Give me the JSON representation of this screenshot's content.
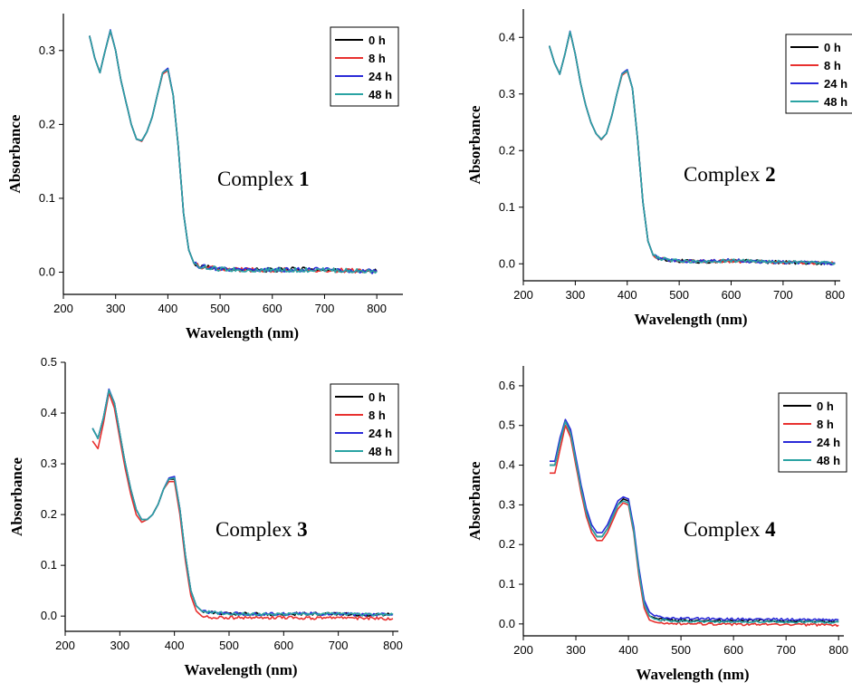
{
  "legend_labels": [
    "0 h",
    "8 h",
    "24 h",
    "48 h"
  ],
  "colors": {
    "0 h": "#000000",
    "8 h": "#e8312f",
    "24 h": "#2a2ad8",
    "48 h": "#2aa3a3"
  },
  "chart_data": [
    {
      "type": "line",
      "title": "",
      "annotation_prefix": "Complex ",
      "annotation_number": "1",
      "xlabel": "Wavelength (nm)",
      "ylabel": "Absorbance",
      "xlim": [
        200,
        850
      ],
      "ylim": [
        -0.03,
        0.35
      ],
      "xticks": [
        "200",
        "300",
        "400",
        "500",
        "600",
        "700",
        "800"
      ],
      "yticks": [
        "0.0",
        "0.1",
        "0.2",
        "0.3"
      ],
      "legend_position": "top-right",
      "x": [
        250,
        260,
        270,
        280,
        290,
        300,
        310,
        320,
        330,
        340,
        350,
        360,
        370,
        380,
        390,
        400,
        410,
        420,
        430,
        440,
        450,
        460,
        480,
        500,
        550,
        600,
        650,
        700,
        750,
        800
      ],
      "series": [
        {
          "name": "0 h",
          "values": [
            0.32,
            0.29,
            0.27,
            0.3,
            0.327,
            0.3,
            0.26,
            0.23,
            0.2,
            0.18,
            0.178,
            0.19,
            0.21,
            0.24,
            0.27,
            0.275,
            0.24,
            0.17,
            0.08,
            0.03,
            0.012,
            0.008,
            0.006,
            0.004,
            0.003,
            0.003,
            0.004,
            0.003,
            0.002,
            0.001
          ]
        },
        {
          "name": "8 h",
          "values": [
            0.32,
            0.29,
            0.27,
            0.3,
            0.326,
            0.3,
            0.26,
            0.23,
            0.2,
            0.18,
            0.177,
            0.19,
            0.21,
            0.24,
            0.268,
            0.273,
            0.24,
            0.17,
            0.08,
            0.03,
            0.012,
            0.008,
            0.006,
            0.004,
            0.003,
            0.003,
            0.003,
            0.003,
            0.002,
            0.001
          ]
        },
        {
          "name": "24 h",
          "values": [
            0.32,
            0.29,
            0.27,
            0.3,
            0.328,
            0.3,
            0.26,
            0.23,
            0.2,
            0.18,
            0.178,
            0.19,
            0.21,
            0.24,
            0.27,
            0.276,
            0.24,
            0.17,
            0.08,
            0.03,
            0.012,
            0.008,
            0.006,
            0.004,
            0.004,
            0.003,
            0.004,
            0.003,
            0.002,
            0.001
          ]
        },
        {
          "name": "48 h",
          "values": [
            0.32,
            0.29,
            0.27,
            0.3,
            0.327,
            0.3,
            0.26,
            0.23,
            0.2,
            0.18,
            0.178,
            0.19,
            0.21,
            0.24,
            0.27,
            0.274,
            0.24,
            0.17,
            0.08,
            0.03,
            0.012,
            0.008,
            0.006,
            0.004,
            0.003,
            0.003,
            0.003,
            0.003,
            0.002,
            0.001
          ]
        }
      ]
    },
    {
      "type": "line",
      "title": "",
      "annotation_prefix": "Complex ",
      "annotation_number": "2",
      "xlabel": "Wavelength (nm)",
      "ylabel": "Absorbance",
      "xlim": [
        200,
        810
      ],
      "ylim": [
        -0.03,
        0.45
      ],
      "xticks": [
        "200",
        "300",
        "400",
        "500",
        "600",
        "700",
        "800"
      ],
      "yticks": [
        "0.0",
        "0.1",
        "0.2",
        "0.3",
        "0.4"
      ],
      "legend_position": "top-right",
      "x": [
        250,
        260,
        270,
        280,
        290,
        300,
        310,
        320,
        330,
        340,
        350,
        360,
        370,
        380,
        390,
        400,
        410,
        420,
        430,
        440,
        450,
        460,
        480,
        500,
        550,
        600,
        650,
        700,
        750,
        800
      ],
      "series": [
        {
          "name": "0 h",
          "values": [
            0.385,
            0.355,
            0.335,
            0.37,
            0.41,
            0.37,
            0.32,
            0.28,
            0.25,
            0.23,
            0.22,
            0.23,
            0.26,
            0.3,
            0.335,
            0.342,
            0.31,
            0.22,
            0.11,
            0.04,
            0.015,
            0.01,
            0.007,
            0.005,
            0.004,
            0.006,
            0.004,
            0.003,
            0.002,
            0.001
          ]
        },
        {
          "name": "8 h",
          "values": [
            0.385,
            0.355,
            0.335,
            0.37,
            0.409,
            0.37,
            0.32,
            0.28,
            0.25,
            0.23,
            0.219,
            0.23,
            0.26,
            0.3,
            0.333,
            0.34,
            0.31,
            0.22,
            0.11,
            0.04,
            0.015,
            0.01,
            0.007,
            0.005,
            0.004,
            0.005,
            0.004,
            0.003,
            0.002,
            0.001
          ]
        },
        {
          "name": "24 h",
          "values": [
            0.385,
            0.355,
            0.335,
            0.37,
            0.411,
            0.37,
            0.32,
            0.28,
            0.25,
            0.23,
            0.22,
            0.23,
            0.26,
            0.3,
            0.336,
            0.343,
            0.31,
            0.22,
            0.11,
            0.04,
            0.015,
            0.01,
            0.007,
            0.005,
            0.005,
            0.006,
            0.004,
            0.003,
            0.002,
            0.001
          ]
        },
        {
          "name": "48 h",
          "values": [
            0.385,
            0.355,
            0.335,
            0.37,
            0.41,
            0.37,
            0.32,
            0.28,
            0.25,
            0.23,
            0.22,
            0.23,
            0.26,
            0.3,
            0.335,
            0.341,
            0.31,
            0.22,
            0.11,
            0.04,
            0.015,
            0.01,
            0.007,
            0.005,
            0.004,
            0.006,
            0.004,
            0.003,
            0.002,
            0.001
          ]
        }
      ]
    },
    {
      "type": "line",
      "title": "",
      "annotation_prefix": "Complex ",
      "annotation_number": "3",
      "xlabel": "Wavelength (nm)",
      "ylabel": "Absorbance",
      "xlim": [
        200,
        810
      ],
      "ylim": [
        -0.03,
        0.5
      ],
      "xticks": [
        "200",
        "300",
        "400",
        "500",
        "600",
        "700",
        "800"
      ],
      "yticks": [
        "0.0",
        "0.1",
        "0.2",
        "0.3",
        "0.4",
        "0.5"
      ],
      "legend_position": "top-right",
      "x": [
        250,
        260,
        270,
        280,
        290,
        300,
        310,
        320,
        330,
        340,
        350,
        360,
        370,
        380,
        390,
        400,
        410,
        420,
        430,
        440,
        450,
        460,
        480,
        500,
        550,
        600,
        650,
        700,
        750,
        800
      ],
      "series": [
        {
          "name": "0 h",
          "values": [
            0.37,
            0.35,
            0.39,
            0.445,
            0.42,
            0.36,
            0.3,
            0.25,
            0.21,
            0.19,
            0.19,
            0.2,
            0.22,
            0.25,
            0.27,
            0.27,
            0.21,
            0.12,
            0.05,
            0.02,
            0.01,
            0.008,
            0.006,
            0.005,
            0.004,
            0.004,
            0.005,
            0.004,
            0.003,
            0.003
          ]
        },
        {
          "name": "8 h",
          "values": [
            0.345,
            0.33,
            0.38,
            0.44,
            0.41,
            0.35,
            0.29,
            0.24,
            0.2,
            0.185,
            0.19,
            0.2,
            0.22,
            0.25,
            0.265,
            0.265,
            0.2,
            0.11,
            0.04,
            0.01,
            0.0,
            -0.002,
            -0.003,
            -0.003,
            -0.003,
            -0.003,
            -0.004,
            -0.004,
            -0.004,
            -0.005
          ]
        },
        {
          "name": "24 h",
          "values": [
            0.37,
            0.35,
            0.39,
            0.447,
            0.42,
            0.36,
            0.3,
            0.25,
            0.21,
            0.19,
            0.19,
            0.2,
            0.22,
            0.25,
            0.272,
            0.275,
            0.21,
            0.12,
            0.05,
            0.02,
            0.01,
            0.008,
            0.006,
            0.005,
            0.004,
            0.004,
            0.005,
            0.004,
            0.003,
            0.003
          ]
        },
        {
          "name": "48 h",
          "values": [
            0.37,
            0.35,
            0.39,
            0.445,
            0.42,
            0.36,
            0.3,
            0.25,
            0.21,
            0.19,
            0.19,
            0.2,
            0.22,
            0.25,
            0.27,
            0.272,
            0.21,
            0.12,
            0.05,
            0.02,
            0.01,
            0.008,
            0.006,
            0.005,
            0.004,
            0.004,
            0.005,
            0.004,
            0.003,
            0.003
          ]
        }
      ]
    },
    {
      "type": "line",
      "title": "",
      "annotation_prefix": "Complex ",
      "annotation_number": "4",
      "xlabel": "Wavelength (nm)",
      "ylabel": "Absorbance",
      "xlim": [
        200,
        810
      ],
      "ylim": [
        -0.03,
        0.65
      ],
      "xticks": [
        "200",
        "300",
        "400",
        "500",
        "600",
        "700",
        "800"
      ],
      "yticks": [
        "0.0",
        "0.1",
        "0.2",
        "0.3",
        "0.4",
        "0.5",
        "0.6"
      ],
      "legend_position": "right",
      "x": [
        250,
        260,
        270,
        280,
        290,
        300,
        310,
        320,
        330,
        340,
        350,
        360,
        370,
        380,
        390,
        400,
        410,
        420,
        430,
        440,
        450,
        460,
        480,
        500,
        550,
        600,
        650,
        700,
        750,
        800
      ],
      "series": [
        {
          "name": "0 h",
          "values": [
            0.4,
            0.4,
            0.46,
            0.51,
            0.48,
            0.41,
            0.34,
            0.28,
            0.24,
            0.22,
            0.22,
            0.24,
            0.27,
            0.3,
            0.315,
            0.31,
            0.24,
            0.13,
            0.05,
            0.02,
            0.015,
            0.012,
            0.01,
            0.009,
            0.008,
            0.008,
            0.008,
            0.007,
            0.007,
            0.006
          ]
        },
        {
          "name": "8 h",
          "values": [
            0.38,
            0.38,
            0.44,
            0.5,
            0.47,
            0.4,
            0.33,
            0.27,
            0.23,
            0.21,
            0.21,
            0.23,
            0.26,
            0.29,
            0.305,
            0.3,
            0.23,
            0.12,
            0.04,
            0.01,
            0.005,
            0.003,
            0.002,
            0.001,
            0.0,
            -0.001,
            -0.001,
            -0.002,
            -0.002,
            -0.003
          ]
        },
        {
          "name": "24 h",
          "values": [
            0.41,
            0.41,
            0.47,
            0.515,
            0.49,
            0.42,
            0.35,
            0.29,
            0.25,
            0.23,
            0.23,
            0.25,
            0.28,
            0.31,
            0.32,
            0.315,
            0.245,
            0.14,
            0.06,
            0.03,
            0.02,
            0.017,
            0.015,
            0.014,
            0.013,
            0.012,
            0.012,
            0.011,
            0.01,
            0.01
          ]
        },
        {
          "name": "48 h",
          "values": [
            0.4,
            0.4,
            0.46,
            0.51,
            0.48,
            0.41,
            0.34,
            0.28,
            0.24,
            0.22,
            0.22,
            0.24,
            0.27,
            0.3,
            0.31,
            0.305,
            0.235,
            0.13,
            0.05,
            0.02,
            0.012,
            0.01,
            0.008,
            0.007,
            0.006,
            0.006,
            0.006,
            0.005,
            0.005,
            0.004
          ]
        }
      ]
    }
  ]
}
